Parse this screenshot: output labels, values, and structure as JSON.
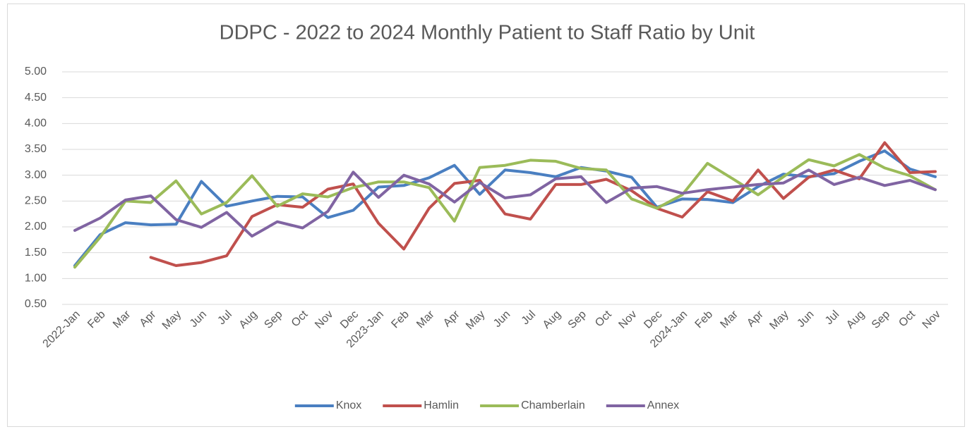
{
  "chart_data": {
    "type": "line",
    "title": "DDPC - 2022 to 2024 Monthly Patient to Staff Ratio by Unit",
    "categories": [
      "2022-Jan",
      "Feb",
      "Mar",
      "Apr",
      "May",
      "Jun",
      "Jul",
      "Aug",
      "Sep",
      "Oct",
      "Nov",
      "Dec",
      "2023-Jan",
      "Feb",
      "Mar",
      "Apr",
      "May",
      "Jun",
      "Jul",
      "Aug",
      "Sep",
      "Oct",
      "Nov",
      "Dec",
      "2024-Jan",
      "Feb",
      "Mar",
      "Apr",
      "May",
      "Jun",
      "Jul",
      "Aug",
      "Sep",
      "Oct",
      "Nov"
    ],
    "series": [
      {
        "name": "Knox",
        "color": "#4a7fc1",
        "values": [
          1.25,
          1.85,
          2.08,
          2.04,
          2.05,
          2.88,
          2.4,
          2.5,
          2.59,
          2.58,
          2.18,
          2.32,
          2.77,
          2.8,
          2.95,
          3.19,
          2.63,
          3.1,
          3.05,
          2.97,
          3.15,
          3.08,
          2.96,
          2.38,
          2.54,
          2.53,
          2.47,
          2.78,
          3.02,
          2.97,
          3.03,
          3.27,
          3.47,
          3.12,
          2.97
        ]
      },
      {
        "name": "Hamlin",
        "color": "#c0504d",
        "values": [
          null,
          null,
          null,
          1.41,
          1.25,
          1.31,
          1.44,
          2.2,
          2.43,
          2.38,
          2.73,
          2.83,
          2.07,
          1.57,
          2.36,
          2.84,
          2.9,
          2.25,
          2.15,
          2.82,
          2.82,
          2.92,
          2.7,
          2.36,
          2.19,
          2.68,
          2.5,
          3.1,
          2.55,
          2.96,
          3.1,
          2.93,
          3.63,
          3.05,
          3.07
        ]
      },
      {
        "name": "Chamberlain",
        "color": "#9bbb59",
        "values": [
          1.22,
          1.8,
          2.5,
          2.47,
          2.89,
          2.25,
          2.47,
          2.99,
          2.4,
          2.64,
          2.58,
          2.76,
          2.87,
          2.87,
          2.76,
          2.11,
          3.15,
          3.19,
          3.29,
          3.27,
          3.13,
          3.1,
          2.54,
          2.36,
          2.62,
          3.23,
          2.93,
          2.62,
          2.97,
          3.3,
          3.18,
          3.4,
          3.14,
          2.99,
          2.72
        ]
      },
      {
        "name": "Annex",
        "color": "#8064a2",
        "values": [
          1.93,
          2.17,
          2.52,
          2.6,
          2.14,
          1.99,
          2.28,
          1.82,
          2.1,
          1.98,
          2.3,
          3.06,
          2.57,
          3.0,
          2.83,
          2.48,
          2.86,
          2.56,
          2.62,
          2.93,
          2.97,
          2.47,
          2.75,
          2.78,
          2.65,
          2.72,
          2.77,
          2.82,
          2.85,
          3.1,
          2.82,
          2.96,
          2.8,
          2.9,
          2.72
        ]
      }
    ],
    "ylim": [
      0.5,
      5
    ],
    "yticks": [
      {
        "value": 0.5,
        "label": "0.50"
      },
      {
        "value": 1,
        "label": "1.00"
      },
      {
        "value": 1.5,
        "label": "1.50"
      },
      {
        "value": 2,
        "label": "2.00"
      },
      {
        "value": 2.5,
        "label": "2.50"
      },
      {
        "value": 3,
        "label": "3.00"
      },
      {
        "value": 3.5,
        "label": "3.50"
      },
      {
        "value": 4,
        "label": "4.00"
      },
      {
        "value": 4.5,
        "label": "4.50"
      },
      {
        "value": 5,
        "label": "5.00"
      }
    ],
    "grid": true,
    "legend": "bottom"
  }
}
